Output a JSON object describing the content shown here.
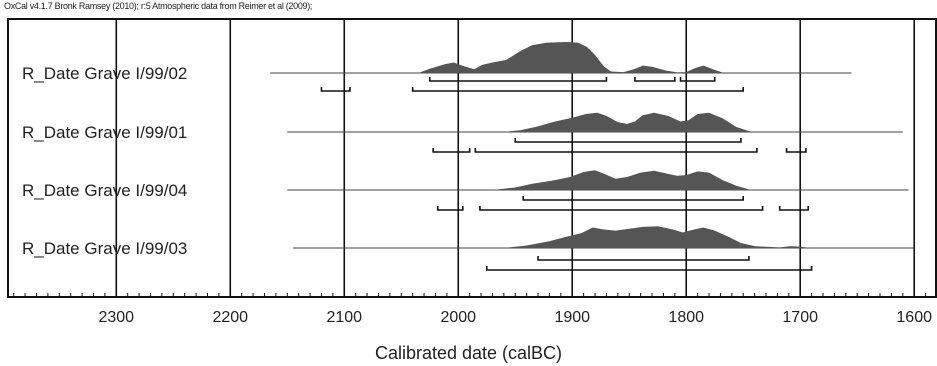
{
  "credit": "OxCal v4.1.7 Bronk Ramsey (2010); r:5 Atmospheric data from Reimer et al (2009);",
  "chart_data": {
    "type": "area",
    "title": "",
    "xlabel": "Calibrated date (calBC)",
    "ylabel": "",
    "xlim": [
      2395,
      1580
    ],
    "x_reversed": true,
    "xticks": [
      2300,
      2200,
      2100,
      2000,
      1900,
      1800,
      1700,
      1600
    ],
    "grid": true,
    "colors": {
      "fill": "#555555",
      "line": "#444444",
      "grid": "#111111",
      "frame": "#111111"
    },
    "series": [
      {
        "name": "R_Date Grave I/99/02",
        "range": [
          2165,
          1655
        ],
        "density": [
          [
            2035,
            0
          ],
          [
            2025,
            0.14
          ],
          [
            2012,
            0.28
          ],
          [
            2004,
            0.34
          ],
          [
            1995,
            0.22
          ],
          [
            1986,
            0.12
          ],
          [
            1979,
            0.26
          ],
          [
            1970,
            0.34
          ],
          [
            1958,
            0.42
          ],
          [
            1945,
            0.72
          ],
          [
            1935,
            0.9
          ],
          [
            1922,
            0.98
          ],
          [
            1905,
            1
          ],
          [
            1895,
            0.98
          ],
          [
            1887,
            0.84
          ],
          [
            1880,
            0.58
          ],
          [
            1872,
            0.2
          ],
          [
            1866,
            0.05
          ],
          [
            1855,
            0.03
          ],
          [
            1846,
            0.12
          ],
          [
            1838,
            0.24
          ],
          [
            1830,
            0.2
          ],
          [
            1818,
            0.08
          ],
          [
            1808,
            0.02
          ],
          [
            1800,
            0.03
          ],
          [
            1792,
            0.16
          ],
          [
            1785,
            0.24
          ],
          [
            1775,
            0.1
          ],
          [
            1767,
            0
          ]
        ],
        "brackets": [
          [
            [
              2025,
              1870
            ],
            [
              1845,
              1810
            ],
            [
              1805,
              1775
            ]
          ],
          [
            [
              2120,
              2095
            ],
            [
              2040,
              1750
            ]
          ]
        ]
      },
      {
        "name": "R_Date Grave I/99/01",
        "range": [
          2150,
          1610
        ],
        "density": [
          [
            1960,
            0
          ],
          [
            1945,
            0.06
          ],
          [
            1930,
            0.18
          ],
          [
            1915,
            0.34
          ],
          [
            1900,
            0.46
          ],
          [
            1888,
            0.58
          ],
          [
            1878,
            0.62
          ],
          [
            1870,
            0.52
          ],
          [
            1860,
            0.32
          ],
          [
            1852,
            0.26
          ],
          [
            1845,
            0.34
          ],
          [
            1838,
            0.54
          ],
          [
            1828,
            0.62
          ],
          [
            1816,
            0.52
          ],
          [
            1805,
            0.34
          ],
          [
            1798,
            0.38
          ],
          [
            1790,
            0.58
          ],
          [
            1780,
            0.62
          ],
          [
            1768,
            0.44
          ],
          [
            1756,
            0.16
          ],
          [
            1745,
            0.03
          ],
          [
            1740,
            0
          ]
        ],
        "brackets": [
          [
            [
              1950,
              1752
            ]
          ],
          [
            [
              2022,
              1990
            ],
            [
              1985,
              1738
            ],
            [
              1712,
              1695
            ]
          ]
        ]
      },
      {
        "name": "R_Date Grave I/99/04",
        "range": [
          2150,
          1605
        ],
        "density": [
          [
            1970,
            0
          ],
          [
            1950,
            0.08
          ],
          [
            1935,
            0.2
          ],
          [
            1918,
            0.3
          ],
          [
            1902,
            0.42
          ],
          [
            1890,
            0.58
          ],
          [
            1880,
            0.64
          ],
          [
            1872,
            0.52
          ],
          [
            1862,
            0.36
          ],
          [
            1852,
            0.42
          ],
          [
            1840,
            0.56
          ],
          [
            1828,
            0.62
          ],
          [
            1816,
            0.52
          ],
          [
            1808,
            0.46
          ],
          [
            1800,
            0.48
          ],
          [
            1790,
            0.6
          ],
          [
            1780,
            0.56
          ],
          [
            1768,
            0.32
          ],
          [
            1756,
            0.14
          ],
          [
            1745,
            0.02
          ],
          [
            1740,
            0
          ]
        ],
        "brackets": [
          [
            [
              1943,
              1750
            ]
          ],
          [
            [
              2018,
              1996
            ],
            [
              1981,
              1733
            ],
            [
              1718,
              1693
            ]
          ]
        ]
      },
      {
        "name": "R_Date Grave I/99/03",
        "range": [
          2145,
          1600
        ],
        "density": [
          [
            1960,
            0
          ],
          [
            1940,
            0.08
          ],
          [
            1920,
            0.22
          ],
          [
            1905,
            0.36
          ],
          [
            1892,
            0.48
          ],
          [
            1882,
            0.66
          ],
          [
            1873,
            0.6
          ],
          [
            1862,
            0.56
          ],
          [
            1850,
            0.62
          ],
          [
            1838,
            0.68
          ],
          [
            1825,
            0.7
          ],
          [
            1812,
            0.6
          ],
          [
            1803,
            0.5
          ],
          [
            1795,
            0.58
          ],
          [
            1785,
            0.66
          ],
          [
            1775,
            0.56
          ],
          [
            1763,
            0.36
          ],
          [
            1752,
            0.16
          ],
          [
            1740,
            0.06
          ],
          [
            1730,
            0.04
          ],
          [
            1718,
            0.02
          ],
          [
            1708,
            0.06
          ],
          [
            1700,
            0.04
          ],
          [
            1690,
            0
          ]
        ],
        "brackets": [
          [
            [
              1930,
              1745
            ]
          ],
          [
            [
              1975,
              1690
            ]
          ]
        ]
      }
    ]
  }
}
